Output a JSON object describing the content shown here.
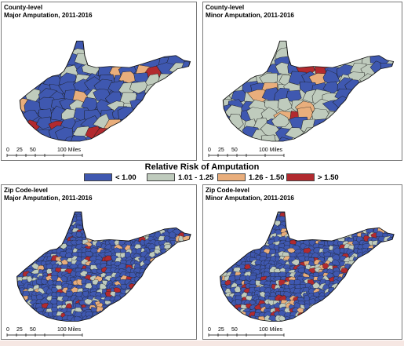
{
  "panels": [
    {
      "id": "county-major",
      "title_line1": "County-level",
      "title_line2": "Major Amputation, 2011-2016"
    },
    {
      "id": "county-minor",
      "title_line1": "County-level",
      "title_line2": "Minor Amputation, 2011-2016"
    },
    {
      "id": "zip-major",
      "title_line1": "Zip Code-level",
      "title_line2": "Major Amputation, 2011-2016"
    },
    {
      "id": "zip-minor",
      "title_line1": "Zip Code-level",
      "title_line2": "Minor Amputation, 2011-2016"
    }
  ],
  "scale": {
    "t0": "0",
    "t1": "25",
    "t2": "50",
    "t3": "100 Miles"
  },
  "legend": {
    "title": "Relative Risk of Amputation",
    "items": [
      {
        "label": "< 1.00",
        "color": "#3f58b0"
      },
      {
        "label": "1.01 - 1.25",
        "color": "#bfcbbd"
      },
      {
        "label": "1.26 - 1.50",
        "color": "#e9ae7c"
      },
      {
        "label": "> 1.50",
        "color": "#b22a2f"
      }
    ]
  }
}
